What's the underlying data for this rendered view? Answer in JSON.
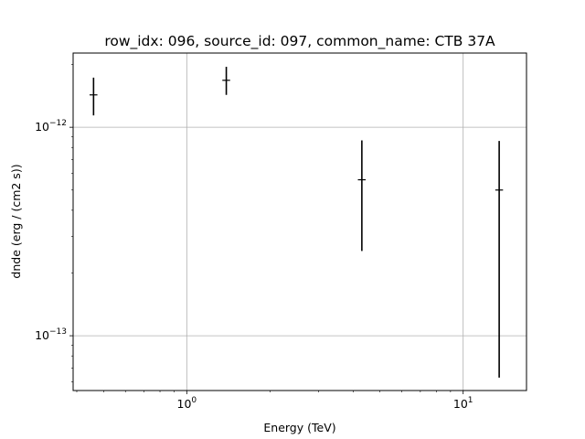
{
  "chart_data": {
    "type": "scatter",
    "title": "row_idx: 096, source_id: 097, common_name: CTB 37A",
    "xlabel": "Energy (TeV)",
    "ylabel": "dnde (erg / (cm2 s))",
    "xscale": "log",
    "yscale": "log",
    "xlim": [
      0.388,
      16.95
    ],
    "ylim": [
      5.46e-14,
      2.27e-12
    ],
    "grid": true,
    "x_ticks": [
      {
        "value": 1,
        "base": "10",
        "exp": "0"
      },
      {
        "value": 10,
        "base": "10",
        "exp": "1"
      }
    ],
    "y_ticks": [
      {
        "value": 1e-13,
        "base": "10",
        "exp": "−13"
      },
      {
        "value": 1e-12,
        "base": "10",
        "exp": "−12"
      }
    ],
    "points": [
      {
        "x": 0.46,
        "y": 1.43e-12,
        "y_low": 1.14e-12,
        "y_high": 1.73e-12,
        "x_low": 0.445,
        "x_high": 0.475
      },
      {
        "x": 1.39,
        "y": 1.68e-12,
        "y_low": 1.43e-12,
        "y_high": 1.95e-12,
        "x_low": 1.345,
        "x_high": 1.435
      },
      {
        "x": 4.3,
        "y": 5.6e-13,
        "y_low": 2.55e-13,
        "y_high": 8.65e-13,
        "x_low": 4.16,
        "x_high": 4.44
      },
      {
        "x": 13.5,
        "y": 5e-13,
        "y_low": 6.3e-14,
        "y_high": 8.6e-13,
        "x_low": 13.07,
        "x_high": 13.94
      }
    ],
    "color": "#000000",
    "grid_color": "#b0b0b0"
  }
}
